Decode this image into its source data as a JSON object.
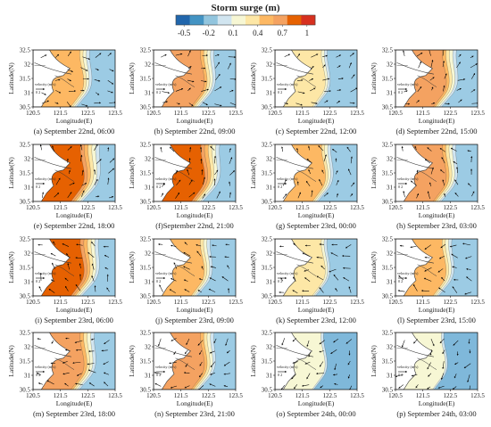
{
  "figure": {
    "title": "Storm surge (m)",
    "colorbar": {
      "tick_labels": [
        "-0.5",
        "-0.2",
        "0.1",
        "0.4",
        "0.7",
        "1"
      ],
      "tick_values": [
        -0.5,
        -0.2,
        0.1,
        0.4,
        0.7,
        1.0
      ],
      "range": [
        -0.6,
        1.1
      ],
      "colors": [
        "#2166ac",
        "#4393c3",
        "#92c5de",
        "#d1e5f0",
        "#f7f7d4",
        "#fde7a6",
        "#fdb863",
        "#f4a261",
        "#e66101",
        "#d7301f"
      ]
    },
    "velocity_legend": {
      "label": "velocity (m/s)",
      "scale": "0   2"
    }
  },
  "chart_data": {
    "type": "heatmap",
    "xlabel": "Longitude(E)",
    "ylabel": "Latitude(N)",
    "xlim": [
      120.5,
      123.5
    ],
    "ylim": [
      30.5,
      32.5
    ],
    "xticks": [
      "120.5",
      "121.5",
      "122.5",
      "123.5"
    ],
    "yticks": [
      "30.5",
      "31",
      "31.5",
      "32",
      "32.5"
    ],
    "panels": [
      {
        "label": "(a) September 22nd, 06:00",
        "intensity": 0.55
      },
      {
        "label": "(b) September 22nd, 09:00",
        "intensity": 0.6
      },
      {
        "label": "(c) September 22nd, 12:00",
        "intensity": 0.35
      },
      {
        "label": "(d) September 22nd, 15:00",
        "intensity": 0.65
      },
      {
        "label": "(e) September 22nd, 18:00",
        "intensity": 0.85
      },
      {
        "label": "(f)September 22nd, 21:00",
        "intensity": 0.8
      },
      {
        "label": "(g) September 23rd, 00:00",
        "intensity": 0.45
      },
      {
        "label": "(h) September 23rd, 03:00",
        "intensity": 0.6
      },
      {
        "label": "(i) September 23rd, 06:00",
        "intensity": 0.75
      },
      {
        "label": "(j) September 23rd, 09:00",
        "intensity": 0.55
      },
      {
        "label": "(k) September 23rd, 12:00",
        "intensity": 0.3
      },
      {
        "label": "(l) September 23rd, 15:00",
        "intensity": 0.5
      },
      {
        "label": "(m) September 23rd, 18:00",
        "intensity": 0.7
      },
      {
        "label": "(n) September 23rd, 21:00",
        "intensity": 0.6
      },
      {
        "label": "(o) September 24th, 00:00",
        "intensity": 0.15
      },
      {
        "label": "(p) September 24th, 03:00",
        "intensity": 0.1
      }
    ]
  }
}
